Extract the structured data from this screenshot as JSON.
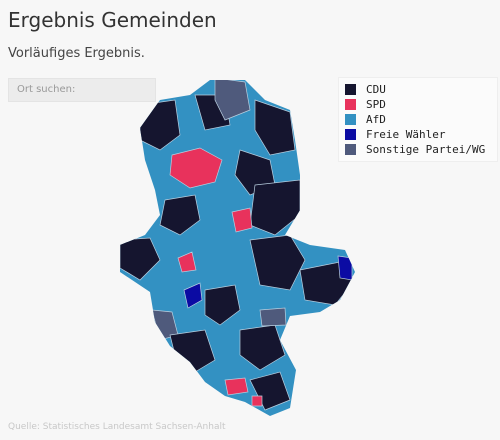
{
  "header": {
    "title": "Ergebnis Gemeinden",
    "subtitle": "Vorläufiges Ergebnis."
  },
  "search": {
    "placeholder": "Ort suchen:"
  },
  "legend": [
    {
      "name": "CDU",
      "color": "#15152f"
    },
    {
      "name": "SPD",
      "color": "#e8325c"
    },
    {
      "name": "AfD",
      "color": "#3391c2"
    },
    {
      "name": "Freie Wähler",
      "color": "#0b0ba3"
    },
    {
      "name": "Sonstige Partei/WG",
      "color": "#4f5a7c"
    }
  ],
  "source": "Quelle: Statistisches Landesamt Sachsen-Anhalt"
}
